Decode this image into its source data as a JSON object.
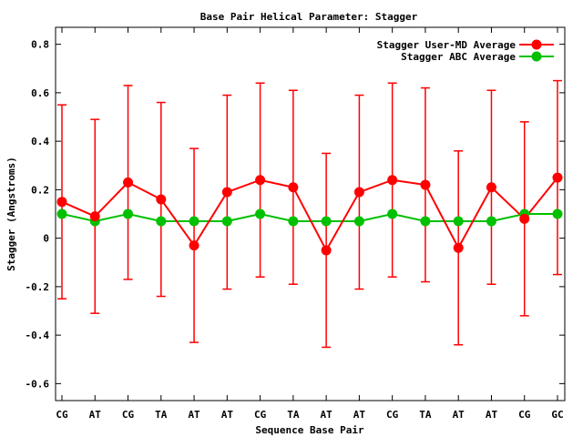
{
  "chart_data": {
    "type": "line",
    "title": "Base Pair Helical Parameter: Stagger",
    "xlabel": "Sequence Base Pair",
    "ylabel": "Stagger (Angstroms)",
    "categories": [
      "CG",
      "AT",
      "CG",
      "TA",
      "AT",
      "AT",
      "CG",
      "TA",
      "AT",
      "AT",
      "CG",
      "TA",
      "AT",
      "AT",
      "CG",
      "GC"
    ],
    "ylim": [
      -0.67,
      0.87
    ],
    "yticks": [
      -0.6,
      -0.4,
      -0.2,
      0,
      0.2,
      0.4,
      0.6,
      0.8
    ],
    "ytick_labels": [
      "-0.6",
      "-0.4",
      "-0.2",
      "0",
      "0.2",
      "0.4",
      "0.6",
      "0.8"
    ],
    "grid": false,
    "legend_position": "top-right",
    "series": [
      {
        "name": "Stagger User-MD Average",
        "color": "#ff0000",
        "values": [
          0.15,
          0.09,
          0.23,
          0.16,
          -0.03,
          0.19,
          0.24,
          0.21,
          -0.05,
          0.19,
          0.24,
          0.22,
          -0.04,
          0.21,
          0.08,
          0.25
        ],
        "error_low": [
          -0.25,
          -0.31,
          -0.17,
          -0.24,
          -0.43,
          -0.21,
          -0.16,
          -0.19,
          -0.45,
          -0.21,
          -0.16,
          -0.18,
          -0.44,
          -0.19,
          -0.32,
          -0.15
        ],
        "error_high": [
          0.55,
          0.49,
          0.63,
          0.56,
          0.37,
          0.59,
          0.64,
          0.61,
          0.35,
          0.59,
          0.64,
          0.62,
          0.36,
          0.61,
          0.48,
          0.65
        ]
      },
      {
        "name": "Stagger ABC Average",
        "color": "#00c000",
        "values": [
          0.1,
          0.07,
          0.1,
          0.07,
          0.07,
          0.07,
          0.1,
          0.07,
          0.07,
          0.07,
          0.1,
          0.07,
          0.07,
          0.07,
          0.1,
          0.1
        ]
      }
    ]
  }
}
